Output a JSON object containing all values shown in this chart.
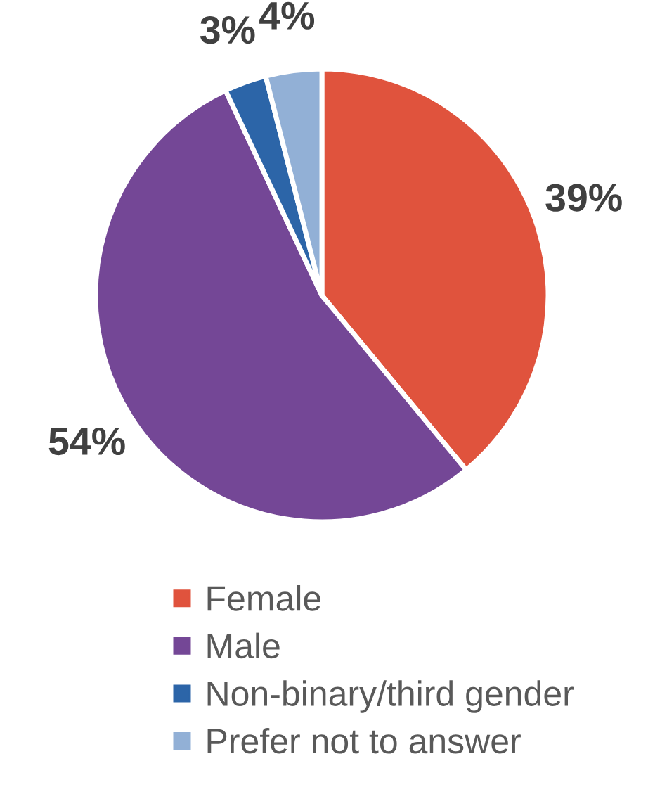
{
  "chart_data": {
    "type": "pie",
    "categories": [
      "Female",
      "Male",
      "Non-binary/third gender",
      "Prefer not to answer"
    ],
    "values": [
      39,
      54,
      3,
      4
    ],
    "colors": [
      "#e0533d",
      "#744796",
      "#2c65a8",
      "#92b0d6"
    ],
    "value_labels": [
      "39%",
      "54%",
      "3%",
      "4%"
    ],
    "legend": "bottom"
  }
}
